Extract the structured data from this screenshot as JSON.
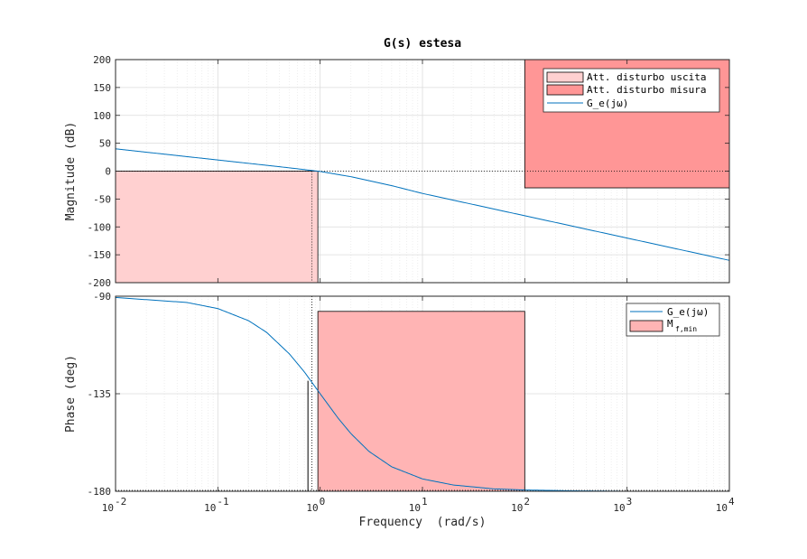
{
  "chart_data": [
    {
      "type": "line",
      "title": "G(s) estesa",
      "xlabel": "",
      "ylabel": "Magnitude (dB)",
      "xscale": "log",
      "xlim": [
        0.01,
        10000
      ],
      "ylim": [
        -200,
        200
      ],
      "x_ticks": [
        0.01,
        0.1,
        1,
        10,
        100,
        1000,
        10000
      ],
      "y_ticks": [
        -200,
        -150,
        -100,
        -50,
        0,
        50,
        100,
        150,
        200
      ],
      "y_tick_labels": [
        "-200",
        "-150",
        "-100",
        "-50",
        "0",
        "50",
        "100",
        "150",
        "200"
      ],
      "grid": true,
      "legend_position": "top-right",
      "series": [
        {
          "name": "G_e(jω)",
          "color": "#0072BD",
          "x": [
            0.01,
            0.05,
            0.1,
            0.3,
            0.5,
            0.8,
            1,
            2,
            5,
            10,
            100,
            1000,
            10000
          ],
          "y": [
            40,
            26,
            20,
            10.4,
            5.9,
            1.5,
            -0.6,
            -10,
            -26,
            -40,
            -80,
            -120,
            -160
          ]
        }
      ],
      "regions": [
        {
          "name": "Att. disturbo uscita",
          "x": [
            0.01,
            0.95
          ],
          "y": [
            -200,
            0
          ],
          "fill": "#FFD0D0"
        },
        {
          "name": "Att. disturbo misura",
          "x": [
            100,
            10000
          ],
          "y": [
            -30,
            200
          ],
          "fill": "#FF9696"
        }
      ],
      "markers": {
        "crossover_x": 0.83,
        "reference_y": 0
      }
    },
    {
      "type": "line",
      "title": "",
      "xlabel": "Frequency  (rad/s)",
      "ylabel": "Phase (deg)",
      "xscale": "log",
      "xlim": [
        0.01,
        10000
      ],
      "ylim": [
        -180,
        -90
      ],
      "x_ticks": [
        0.01,
        0.1,
        1,
        10,
        100,
        1000,
        10000
      ],
      "x_tick_bases": [
        "10",
        "10",
        "10",
        "10",
        "10",
        "10",
        "10"
      ],
      "x_tick_exponents": [
        "-2",
        "-1",
        "0",
        "1",
        "2",
        "3",
        "4"
      ],
      "y_ticks": [
        -180,
        -135,
        -90
      ],
      "y_tick_labels": [
        "-180",
        "-135",
        "-90"
      ],
      "grid": true,
      "legend_position": "top-right",
      "series": [
        {
          "name": "G_e(jω)",
          "color": "#0072BD",
          "x": [
            0.01,
            0.05,
            0.1,
            0.2,
            0.3,
            0.5,
            0.7,
            0.85,
            1,
            1.5,
            2,
            3,
            5,
            10,
            20,
            50,
            100,
            300,
            1000,
            10000
          ],
          "y": [
            -90.6,
            -92.9,
            -95.7,
            -101.3,
            -106.7,
            -116.6,
            -124.9,
            -130.4,
            -135,
            -146.3,
            -153.4,
            -161.6,
            -168.7,
            -174.3,
            -177.1,
            -178.9,
            -179.4,
            -179.8,
            -180,
            -180
          ]
        }
      ],
      "regions": [
        {
          "name": "M_f,min",
          "name_main": "M",
          "name_sub": "f,min",
          "x": [
            0.95,
            100
          ],
          "y": [
            -180,
            -97
          ],
          "fill": "#FFB4B4"
        }
      ],
      "markers": {
        "crossover_x": 0.83,
        "bracket_x": [
          0.76,
          0.83
        ],
        "phase_at_crossover": -129,
        "reference_y": -180
      }
    }
  ]
}
